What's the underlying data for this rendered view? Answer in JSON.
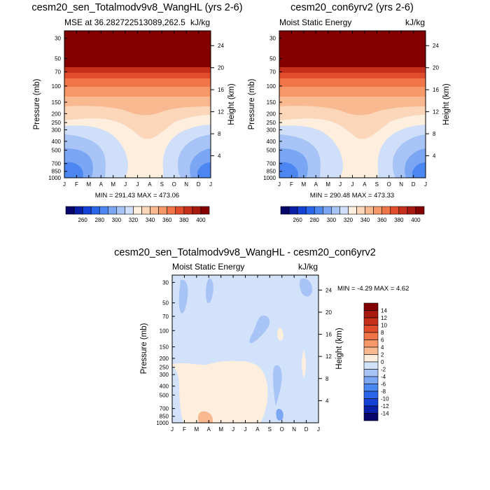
{
  "chart_data": [
    {
      "type": "contour",
      "title": "cesm20_sen_Totalmodv9v8_WangHL (yrs 2-6)",
      "left_label": "MSE at 36.282722513089,262.5",
      "right_label": "kJ/kg",
      "ylabel": "Pressure (mb)",
      "ylabel_right": "Height (km)",
      "x_ticks": [
        "J",
        "F",
        "M",
        "A",
        "M",
        "J",
        "J",
        "A",
        "S",
        "O",
        "N",
        "D",
        "J"
      ],
      "pressure_ticks": [
        30,
        50,
        70,
        100,
        150,
        200,
        250,
        300,
        400,
        500,
        700,
        850,
        1000
      ],
      "height_ticks": [
        4,
        8,
        12,
        16,
        20,
        24
      ],
      "stats": "MIN = 291.43 MAX = 473.06",
      "colorbar_labels": [
        "260",
        "280",
        "300",
        "320",
        "340",
        "360",
        "380",
        "400"
      ],
      "colorbar_levels": [
        250,
        260,
        270,
        280,
        290,
        300,
        310,
        320,
        330,
        340,
        350,
        360,
        370,
        380,
        390,
        400,
        410
      ],
      "colorbar_colors": [
        "#06066b",
        "#0b20a8",
        "#1442d6",
        "#2a66ea",
        "#4c86f0",
        "#7aa6f3",
        "#a8c4f6",
        "#cfdff9",
        "#fdeedd",
        "#fbd6b8",
        "#f8b890",
        "#f69868",
        "#f07548",
        "#e04d2c",
        "#c4301c",
        "#a81a10",
        "#840000"
      ],
      "bands": [
        {
          "name": "top-dark",
          "p_top": 25,
          "p_bot": 45,
          "level": 410
        },
        {
          "name": "upper-red",
          "p_top": 45,
          "p_bot": 90,
          "level": 380
        },
        {
          "name": "lower-red",
          "p_top": 90,
          "p_bot": 150,
          "level": 360
        },
        {
          "name": "pink",
          "p_top": 150,
          "p_bot": 220,
          "level": 340
        },
        {
          "name": "mid-blue",
          "p_top": 220,
          "p_bot": 500,
          "level": 320
        },
        {
          "name": "cream-summer",
          "p_top": 300,
          "p_bot": 1000,
          "level": 330
        },
        {
          "name": "winter-blue",
          "p_top": 400,
          "p_bot": 1000,
          "level": 300
        }
      ]
    },
    {
      "type": "contour",
      "title": "cesm20_con6yrv2 (yrs 2-6)",
      "left_label": "Moist Static Energy",
      "right_label": "kJ/kg",
      "ylabel": "Pressure (mb)",
      "ylabel_right": "Height (km)",
      "x_ticks": [
        "J",
        "F",
        "M",
        "A",
        "M",
        "J",
        "J",
        "A",
        "S",
        "O",
        "N",
        "D",
        "J"
      ],
      "pressure_ticks": [
        30,
        50,
        70,
        100,
        150,
        200,
        250,
        300,
        400,
        500,
        700,
        850,
        1000
      ],
      "height_ticks": [
        4,
        8,
        12,
        16,
        20,
        24
      ],
      "stats": "MIN = 290.48 MAX = 473.33",
      "colorbar_labels": [
        "260",
        "280",
        "300",
        "320",
        "340",
        "360",
        "380",
        "400"
      ]
    },
    {
      "type": "contour",
      "title": "cesm20_sen_Totalmodv9v8_WangHL - cesm20_con6yrv2",
      "left_label": "Moist Static Energy",
      "right_label": "kJ/kg",
      "ylabel": "Pressure (mb)",
      "ylabel_right": "Height (km)",
      "x_ticks": [
        "J",
        "F",
        "M",
        "A",
        "M",
        "J",
        "J",
        "A",
        "S",
        "O",
        "N",
        "D",
        "J"
      ],
      "pressure_ticks": [
        30,
        50,
        70,
        100,
        150,
        200,
        250,
        300,
        400,
        500,
        700,
        850,
        1000
      ],
      "height_ticks": [
        4,
        8,
        12,
        16,
        20,
        24
      ],
      "stats": "MIN = -4.29 MAX =   4.62",
      "colorbar_labels": [
        "14",
        "12",
        "10",
        "8",
        "6",
        "4",
        "2",
        "0",
        "-2",
        "-4",
        "-6",
        "-8",
        "-10",
        "-12",
        "-14"
      ],
      "colorbar_colors": [
        "#840000",
        "#a81a10",
        "#c4301c",
        "#e04d2c",
        "#f07548",
        "#f69868",
        "#f8b890",
        "#fdeedd",
        "#d2e2fa",
        "#a8c4f6",
        "#7aa6f3",
        "#4c86f0",
        "#2a66ea",
        "#1442d6",
        "#0b20a8",
        "#06066b"
      ]
    }
  ]
}
